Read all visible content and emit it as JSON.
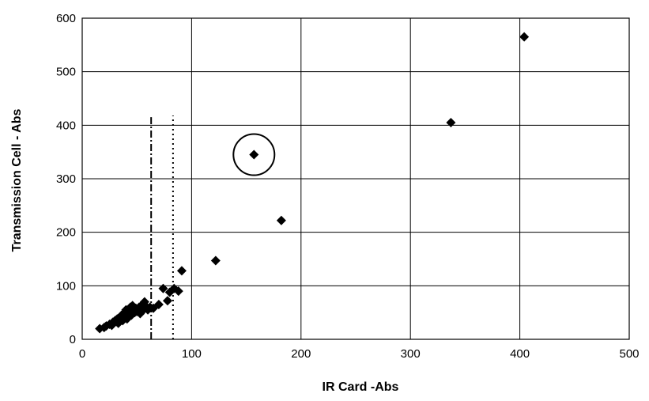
{
  "chart_data": {
    "type": "scatter",
    "title": "",
    "xlabel": "IR Card -Abs",
    "ylabel": "Transmission Cell - Abs",
    "xlim": [
      0,
      500
    ],
    "ylim": [
      0,
      600
    ],
    "xticks": [
      "0",
      "100",
      "200",
      "300",
      "400",
      "500"
    ],
    "yticks": [
      "0",
      "100",
      "200",
      "300",
      "400",
      "500",
      "600"
    ],
    "grid": true,
    "legend": "none",
    "marker": "diamond",
    "marker_color": "#000000",
    "points": [
      [
        16,
        20
      ],
      [
        20,
        22
      ],
      [
        22,
        25
      ],
      [
        25,
        28
      ],
      [
        27,
        26
      ],
      [
        28,
        32
      ],
      [
        30,
        35
      ],
      [
        32,
        38
      ],
      [
        33,
        30
      ],
      [
        35,
        40
      ],
      [
        36,
        45
      ],
      [
        37,
        35
      ],
      [
        38,
        42
      ],
      [
        39,
        50
      ],
      [
        40,
        55
      ],
      [
        41,
        38
      ],
      [
        42,
        48
      ],
      [
        43,
        52
      ],
      [
        44,
        60
      ],
      [
        45,
        45
      ],
      [
        46,
        63
      ],
      [
        47,
        55
      ],
      [
        48,
        50
      ],
      [
        49,
        58
      ],
      [
        50,
        52
      ],
      [
        52,
        60
      ],
      [
        53,
        48
      ],
      [
        55,
        65
      ],
      [
        56,
        55
      ],
      [
        57,
        70
      ],
      [
        58,
        62
      ],
      [
        60,
        55
      ],
      [
        62,
        60
      ],
      [
        65,
        58
      ],
      [
        70,
        65
      ],
      [
        74,
        95
      ],
      [
        78,
        72
      ],
      [
        80,
        88
      ],
      [
        84,
        95
      ],
      [
        88,
        90
      ],
      [
        91,
        128
      ],
      [
        122,
        147
      ],
      [
        157,
        345
      ],
      [
        182,
        222
      ],
      [
        337,
        405
      ],
      [
        404,
        565
      ]
    ],
    "highlighted_point": [
      157,
      345
    ],
    "reference_lines": [
      {
        "x": 63,
        "style": "dash-dot",
        "y_top": 415
      },
      {
        "x": 83,
        "style": "dotted",
        "y_top": 418
      }
    ]
  }
}
